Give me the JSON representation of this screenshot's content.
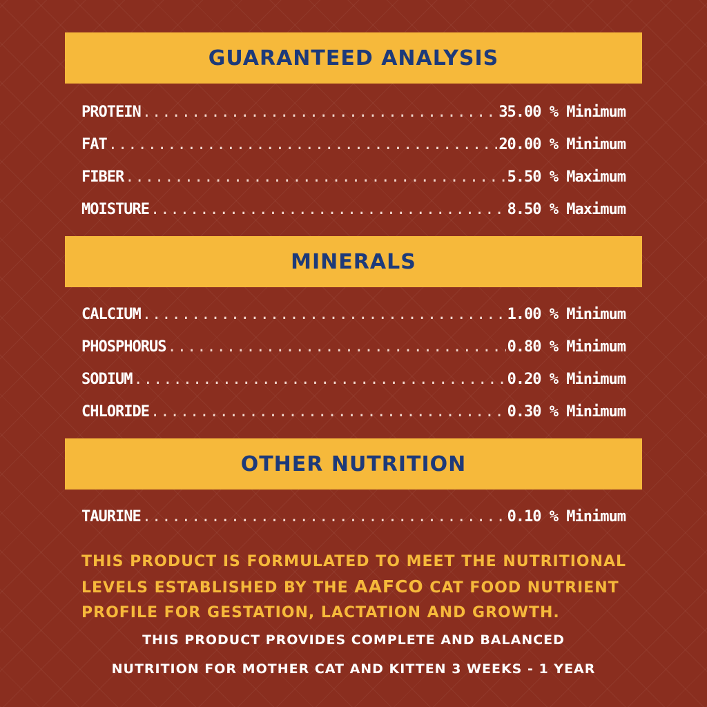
{
  "colors": {
    "background": "#8a2e1f",
    "band": "#f6b93b",
    "heading_text": "#1d3a7a",
    "row_text": "#ffffff",
    "note_text": "#f6b93b"
  },
  "sections": [
    {
      "title": "GUARANTEED ANALYSIS",
      "rows": [
        {
          "label": "PROTEIN",
          "value": "35.00 %  Minimum"
        },
        {
          "label": "FAT",
          "value": "20.00 %  Minimum"
        },
        {
          "label": "FIBER",
          "value": "5.50 %  Maximum"
        },
        {
          "label": "MOISTURE",
          "value": "8.50 %  Maximum"
        }
      ]
    },
    {
      "title": "MINERALS",
      "rows": [
        {
          "label": "CALCIUM",
          "value": "1.00 %  Minimum"
        },
        {
          "label": "PHOSPHORUS",
          "value": "0.80 %  Minimum"
        },
        {
          "label": "SODIUM",
          "value": "0.20 %  Minimum"
        },
        {
          "label": "CHLORIDE",
          "value": "0.30 %  Minimum"
        }
      ]
    },
    {
      "title": "OTHER NUTRITION",
      "rows": [
        {
          "label": "TAURINE",
          "value": "0.10 % Minimum"
        }
      ]
    }
  ],
  "note": {
    "line1": "THIS PRODUCT IS FORMULATED TO MEET THE NUTRITIONAL",
    "line2_pre": "LEVELS ESTABLISHED BY THE ",
    "line2_brand": "AAFCO",
    "line2_post": " CAT FOOD NUTRIENT",
    "line3": "PROFILE FOR GESTATION, LACTATION AND GROWTH."
  },
  "statement": {
    "line1": "THIS PRODUCT PROVIDES COMPLETE AND BALANCED",
    "line2": "NUTRITION FOR MOTHER CAT AND KITTEN 3 WEEKS - 1 YEAR"
  }
}
